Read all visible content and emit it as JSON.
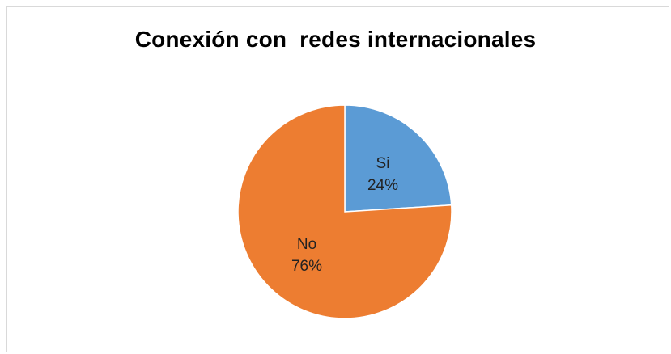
{
  "chart_data": {
    "type": "pie",
    "title": "Conexión con  redes internacionales",
    "slices": [
      {
        "label": "Si",
        "value": 24,
        "value_label": "24%",
        "color": "#5b9bd5"
      },
      {
        "label": "No",
        "value": 76,
        "value_label": "76%",
        "color": "#ed7d31"
      }
    ],
    "start_angle_deg": 0,
    "direction": "clockwise",
    "legend": "none"
  }
}
